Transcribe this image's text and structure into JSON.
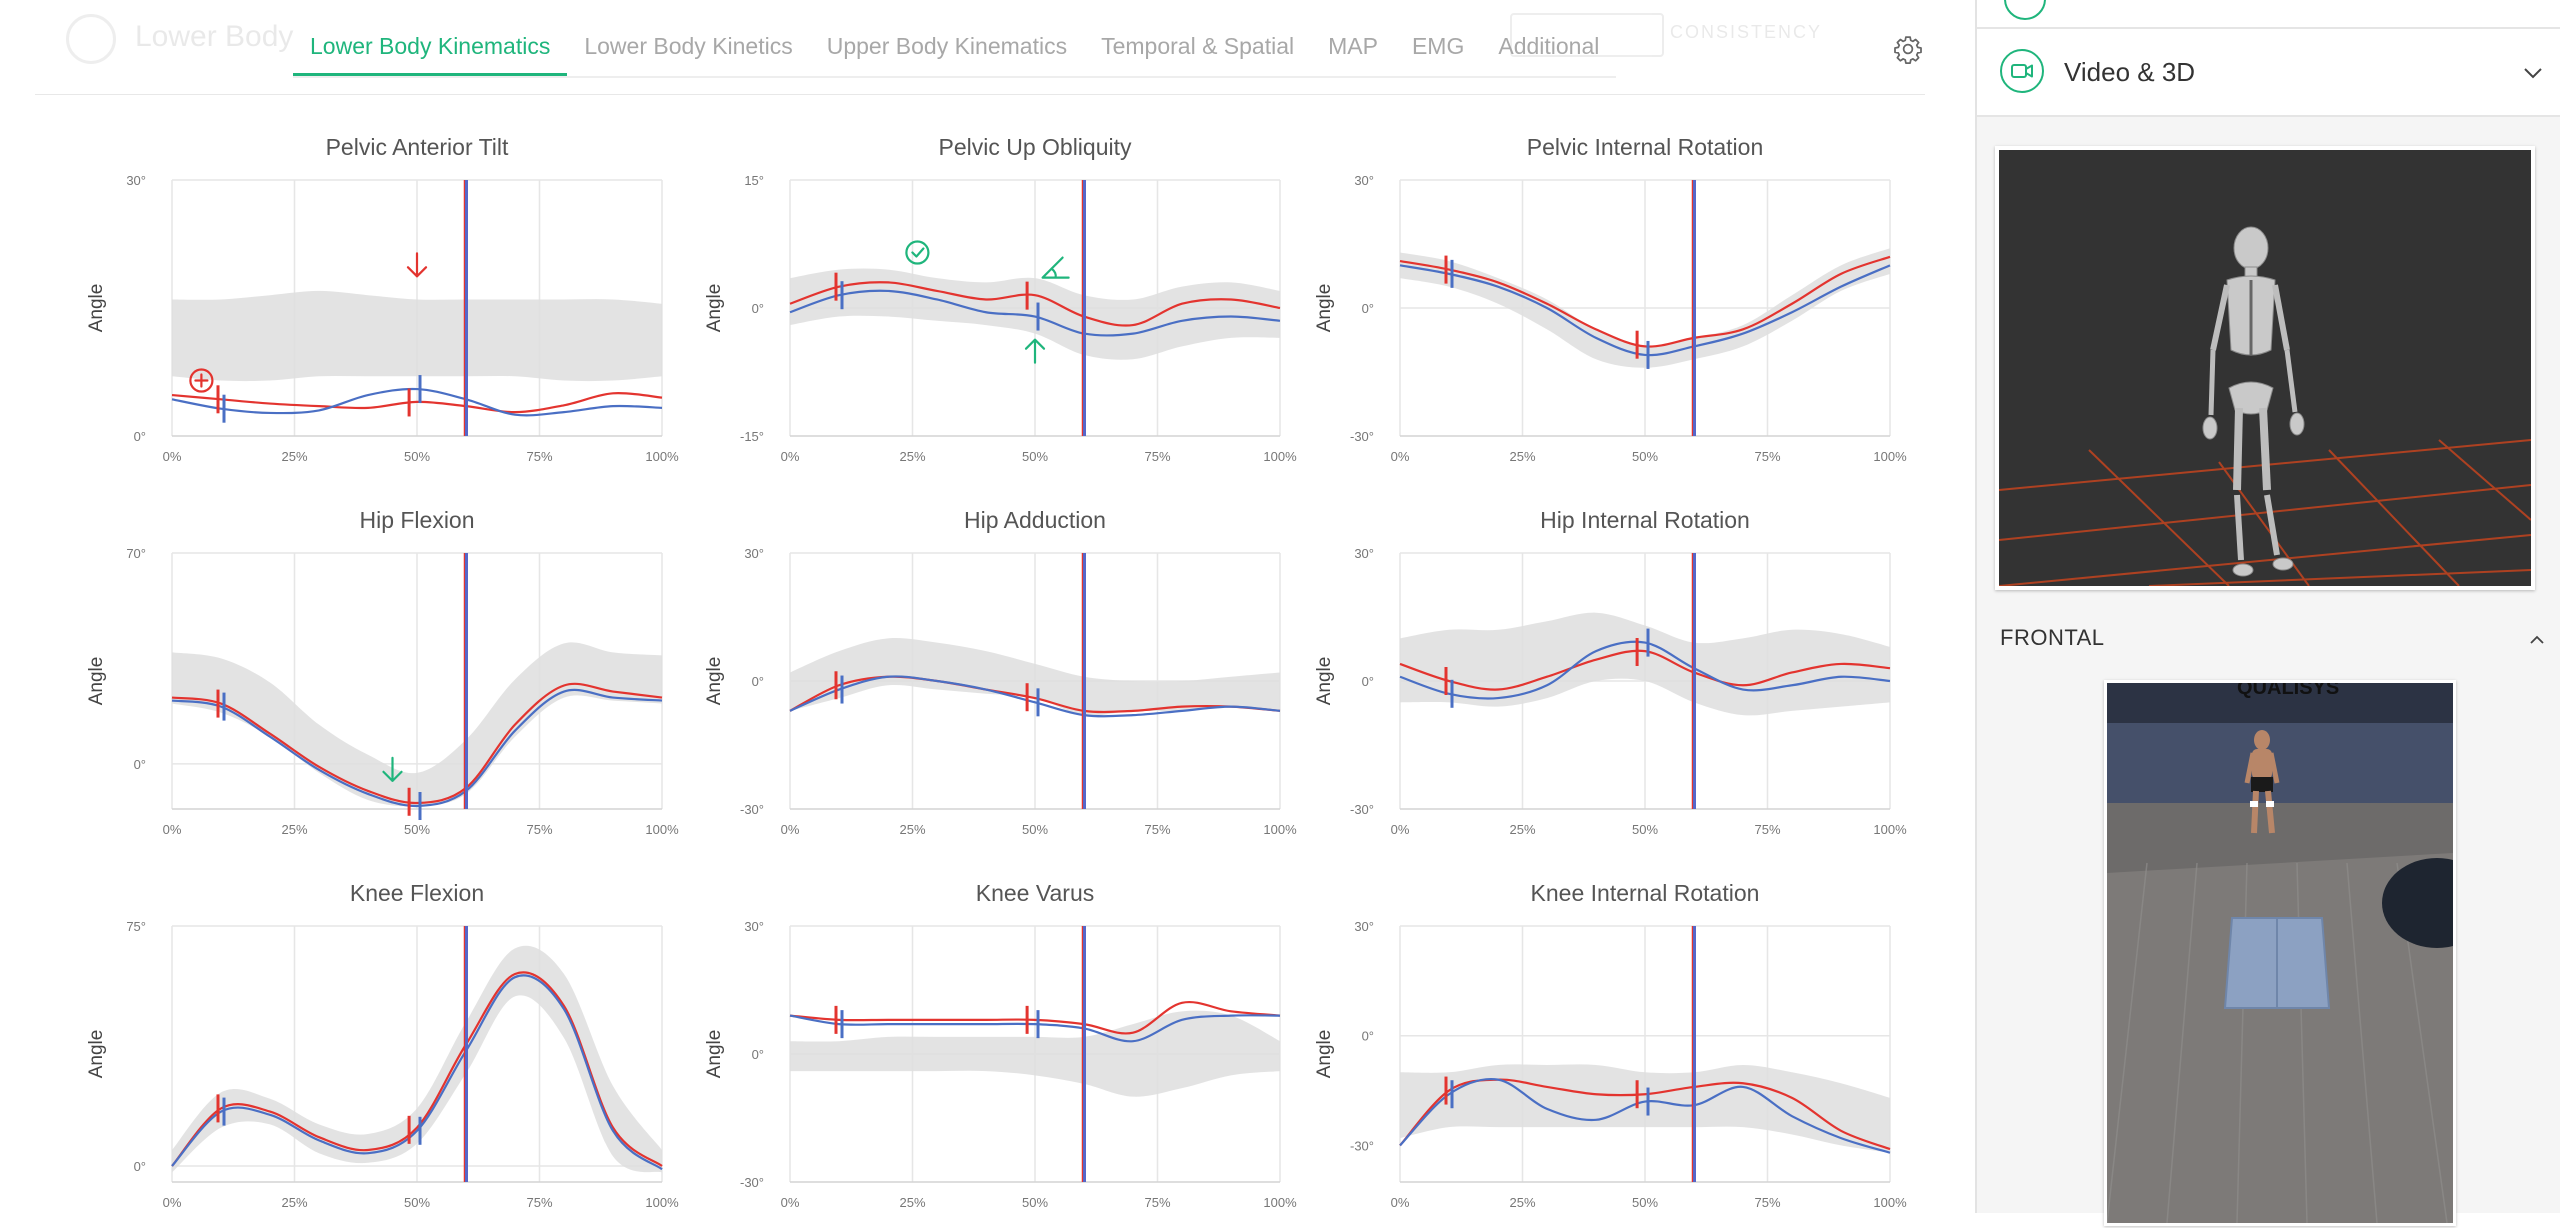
{
  "header": {
    "ghost_title": "Lower Body",
    "ghost_button": "CONSISTENCY",
    "tabs": [
      {
        "label": "Lower Body Kinematics",
        "active": true
      },
      {
        "label": "Lower Body Kinetics",
        "active": false
      },
      {
        "label": "Upper Body Kinematics",
        "active": false
      },
      {
        "label": "Temporal & Spatial",
        "active": false
      },
      {
        "label": "MAP",
        "active": false
      },
      {
        "label": "EMG",
        "active": false
      },
      {
        "label": "Additional",
        "active": false
      }
    ],
    "settings_icon": "gear-icon"
  },
  "sidebar": {
    "video_panel": {
      "title": "Video & 3D",
      "icon": "video-camera-icon",
      "chevron": "chevron-down-icon"
    },
    "frontal": {
      "label": "FRONTAL",
      "chevron": "chevron-up-icon",
      "watermark": "QUALISYS"
    }
  },
  "colors": {
    "accent": "#1fb57c",
    "left_side": "#e3342f",
    "right_side": "#4a6fc4",
    "normal_band": "#dedede",
    "event_marker": "#5567c9",
    "warning": "#e3342f",
    "ok": "#1fb57c"
  },
  "chart_data": [
    {
      "id": "pelvic-anterior-tilt",
      "type": "line",
      "title": "Pelvic Anterior Tilt",
      "ylabel": "Angle",
      "ylim": [
        0,
        30
      ],
      "ytick_labels": [
        "30°",
        "0°"
      ],
      "xtick_labels": [
        "0%",
        "25%",
        "50%",
        "75%",
        "100%"
      ],
      "x": [
        0,
        10,
        20,
        30,
        40,
        50,
        60,
        70,
        80,
        90,
        100
      ],
      "band_upper": [
        16,
        16,
        16.5,
        17,
        16.5,
        16,
        16,
        16,
        16,
        16,
        15.5
      ],
      "band_lower": [
        7,
        6.5,
        6.5,
        7,
        7,
        7,
        7,
        7,
        6.5,
        6.5,
        7
      ],
      "series": [
        {
          "side": "left",
          "values": [
            4.8,
            4.3,
            3.8,
            3.5,
            3.3,
            4.0,
            3.5,
            2.8,
            3.6,
            5.0,
            4.5
          ]
        },
        {
          "side": "right",
          "values": [
            4.3,
            3.2,
            2.7,
            3.0,
            4.8,
            5.5,
            4.3,
            2.5,
            2.8,
            3.5,
            3.3
          ]
        }
      ],
      "events": {
        "left": [
          10,
          49
        ],
        "right": [
          10,
          50
        ]
      },
      "event_line": 60,
      "annotations": [
        {
          "icon": "arrow-down-icon",
          "color": "warning",
          "x": 50,
          "y": 20
        },
        {
          "icon": "plus-circle-icon",
          "color": "warning",
          "x": 6,
          "y": 6.5
        }
      ]
    },
    {
      "id": "pelvic-up-obliquity",
      "type": "line",
      "title": "Pelvic Up Obliquity",
      "ylabel": "Angle",
      "ylim": [
        -15,
        15
      ],
      "ytick_labels": [
        "15°",
        "0°",
        "-15°"
      ],
      "xtick_labels": [
        "0%",
        "25%",
        "50%",
        "75%",
        "100%"
      ],
      "x": [
        0,
        10,
        20,
        30,
        40,
        50,
        60,
        70,
        80,
        90,
        100
      ],
      "band_upper": [
        3.5,
        4.5,
        4.5,
        3.5,
        3,
        3.5,
        1.5,
        1,
        2.5,
        3,
        2
      ],
      "band_lower": [
        -2,
        -1,
        -1,
        -1.5,
        -2,
        -3,
        -5.5,
        -6,
        -4.5,
        -3.5,
        -3.5
      ],
      "series": [
        {
          "side": "left",
          "values": [
            0.5,
            2.5,
            3.0,
            2.0,
            1.0,
            1.5,
            -1.0,
            -2.0,
            0.5,
            1.0,
            0.0
          ]
        },
        {
          "side": "right",
          "values": [
            -0.5,
            1.5,
            2.0,
            1.0,
            -0.5,
            -1.0,
            -3.0,
            -3.0,
            -1.5,
            -1.0,
            -1.5
          ]
        }
      ],
      "events": {
        "left": [
          10,
          49
        ],
        "right": [
          10,
          50
        ]
      },
      "event_line": 60,
      "annotations": [
        {
          "icon": "check-circle-icon",
          "color": "ok",
          "x": 26,
          "y": 6.5
        },
        {
          "icon": "angle-icon",
          "color": "ok",
          "x": 54,
          "y": 4.5
        },
        {
          "icon": "arrow-up-icon",
          "color": "ok",
          "x": 50,
          "y": -5
        }
      ]
    },
    {
      "id": "pelvic-internal-rotation",
      "type": "line",
      "title": "Pelvic Internal Rotation",
      "ylabel": "Angle",
      "ylim": [
        -30,
        30
      ],
      "ytick_labels": [
        "30°",
        "0°",
        "-30°"
      ],
      "xtick_labels": [
        "0%",
        "25%",
        "50%",
        "75%",
        "100%"
      ],
      "x": [
        0,
        10,
        20,
        30,
        40,
        50,
        60,
        70,
        80,
        90,
        100
      ],
      "band_upper": [
        13,
        11,
        7,
        2,
        -5,
        -9,
        -7,
        -4,
        3,
        10,
        14
      ],
      "band_lower": [
        7,
        5,
        1,
        -5,
        -12,
        -14,
        -12,
        -9,
        -3,
        4,
        8
      ],
      "series": [
        {
          "side": "left",
          "values": [
            11,
            9,
            6,
            1,
            -5,
            -9,
            -7,
            -5,
            1,
            8,
            12
          ]
        },
        {
          "side": "right",
          "values": [
            10,
            8,
            5,
            0,
            -7,
            -11,
            -9,
            -6,
            -1,
            5,
            10
          ]
        }
      ],
      "events": {
        "left": [
          10,
          49
        ],
        "right": [
          10,
          50
        ]
      },
      "event_line": 60,
      "annotations": []
    },
    {
      "id": "hip-flexion",
      "type": "line",
      "title": "Hip Flexion",
      "ylabel": "Angle",
      "ylim": [
        -15,
        70
      ],
      "ytick_labels": [
        "70°",
        "0°"
      ],
      "xtick_labels": [
        "0%",
        "25%",
        "50%",
        "75%",
        "100%"
      ],
      "x": [
        0,
        10,
        20,
        30,
        40,
        50,
        60,
        70,
        80,
        90,
        100
      ],
      "band_upper": [
        37,
        35,
        27,
        13,
        3,
        -3,
        8,
        28,
        40,
        37,
        36
      ],
      "band_lower": [
        20,
        17,
        9,
        -3,
        -12,
        -14,
        -10,
        9,
        22,
        21,
        20
      ],
      "series": [
        {
          "side": "left",
          "values": [
            22,
            20,
            10,
            -1,
            -9,
            -13,
            -8,
            13,
            26,
            24,
            22
          ]
        },
        {
          "side": "right",
          "values": [
            21,
            19,
            9,
            -2,
            -10,
            -14,
            -9,
            11,
            24,
            22,
            21
          ]
        }
      ],
      "events": {
        "left": [
          10,
          49
        ],
        "right": [
          10,
          50
        ]
      },
      "event_line": 60,
      "annotations": [
        {
          "icon": "arrow-down-icon",
          "color": "ok",
          "x": 45,
          "y": -2
        }
      ]
    },
    {
      "id": "hip-adduction",
      "type": "line",
      "title": "Hip Adduction",
      "ylabel": "Angle",
      "ylim": [
        -30,
        30
      ],
      "ytick_labels": [
        "30°",
        "0°",
        "-30°"
      ],
      "xtick_labels": [
        "0%",
        "25%",
        "50%",
        "75%",
        "100%"
      ],
      "x": [
        0,
        10,
        20,
        30,
        40,
        50,
        60,
        70,
        80,
        90,
        100
      ],
      "band_upper": [
        2,
        7,
        10,
        9,
        7,
        4,
        1,
        0,
        0,
        1,
        2
      ],
      "band_lower": [
        -7,
        -4,
        -1,
        -2,
        -3,
        -4,
        -8,
        -7,
        -7,
        -6,
        -7
      ],
      "series": [
        {
          "side": "left",
          "values": [
            -7,
            -1,
            1,
            0,
            -2,
            -4,
            -7,
            -7,
            -6,
            -6,
            -7
          ]
        },
        {
          "side": "right",
          "values": [
            -7,
            -2,
            1,
            0,
            -2,
            -5,
            -8,
            -8,
            -7,
            -6,
            -7
          ]
        }
      ],
      "events": {
        "left": [
          10,
          49
        ],
        "right": [
          10,
          50
        ]
      },
      "event_line": 60,
      "annotations": []
    },
    {
      "id": "hip-internal-rotation",
      "type": "line",
      "title": "Hip Internal Rotation",
      "ylabel": "Angle",
      "ylim": [
        -30,
        30
      ],
      "ytick_labels": [
        "30°",
        "0°",
        "-30°"
      ],
      "xtick_labels": [
        "0%",
        "25%",
        "50%",
        "75%",
        "100%"
      ],
      "x": [
        0,
        10,
        20,
        30,
        40,
        50,
        60,
        70,
        80,
        90,
        100
      ],
      "band_upper": [
        10,
        12,
        12,
        14,
        16,
        13,
        9,
        10,
        12,
        11,
        8
      ],
      "band_lower": [
        -5,
        -5,
        -6,
        -4,
        0,
        0,
        -5,
        -8,
        -7,
        -6,
        -5
      ],
      "series": [
        {
          "side": "left",
          "values": [
            4,
            0,
            -2,
            1,
            5,
            7,
            2,
            -1,
            2,
            4,
            3
          ]
        },
        {
          "side": "right",
          "values": [
            1,
            -3,
            -4,
            -1,
            7,
            9,
            3,
            -2,
            -1,
            1,
            0
          ]
        }
      ],
      "events": {
        "left": [
          10,
          49
        ],
        "right": [
          10,
          50
        ]
      },
      "event_line": 60,
      "annotations": []
    },
    {
      "id": "knee-flexion",
      "type": "line",
      "title": "Knee Flexion",
      "ylabel": "Angle",
      "ylim": [
        -5,
        75
      ],
      "ytick_labels": [
        "75°",
        "0°"
      ],
      "xtick_labels": [
        "0%",
        "25%",
        "50%",
        "75%",
        "100%"
      ],
      "x": [
        0,
        10,
        20,
        30,
        40,
        50,
        60,
        70,
        80,
        90,
        100
      ],
      "band_upper": [
        5,
        23,
        21,
        13,
        10,
        18,
        45,
        68,
        60,
        25,
        5
      ],
      "band_lower": [
        -2,
        12,
        13,
        4,
        1,
        7,
        29,
        53,
        40,
        3,
        -2
      ],
      "series": [
        {
          "side": "left",
          "values": [
            0,
            18,
            17,
            9,
            5,
            12,
            38,
            60,
            50,
            12,
            0
          ]
        },
        {
          "side": "right",
          "values": [
            0,
            17,
            16,
            8,
            4,
            11,
            36,
            59,
            49,
            11,
            -1
          ]
        }
      ],
      "events": {
        "left": [
          10,
          49
        ],
        "right": [
          10,
          50
        ]
      },
      "event_line": 60,
      "annotations": []
    },
    {
      "id": "knee-varus",
      "type": "line",
      "title": "Knee Varus",
      "ylabel": "Angle",
      "ylim": [
        -30,
        30
      ],
      "ytick_labels": [
        "30°",
        "0°",
        "-30°"
      ],
      "xtick_labels": [
        "0%",
        "25%",
        "50%",
        "75%",
        "100%"
      ],
      "x": [
        0,
        10,
        20,
        30,
        40,
        50,
        60,
        70,
        80,
        90,
        100
      ],
      "band_upper": [
        3,
        3,
        4,
        4,
        4,
        4,
        4,
        7,
        10,
        9,
        3
      ],
      "band_lower": [
        -4,
        -4,
        -4,
        -4,
        -4,
        -5,
        -7,
        -10,
        -8,
        -5,
        -4
      ],
      "series": [
        {
          "side": "left",
          "values": [
            9,
            8,
            8,
            8,
            8,
            8,
            7,
            5,
            12,
            10,
            9
          ]
        },
        {
          "side": "right",
          "values": [
            9,
            7,
            7,
            7,
            7,
            7,
            6,
            3,
            8,
            9,
            9
          ]
        }
      ],
      "events": {
        "left": [
          10,
          49
        ],
        "right": [
          10,
          50
        ]
      },
      "event_line": 60,
      "annotations": []
    },
    {
      "id": "knee-internal-rotation",
      "type": "line",
      "title": "Knee Internal Rotation",
      "ylabel": "Angle",
      "ylim": [
        -40,
        30
      ],
      "ytick_labels": [
        "30°",
        "0°",
        "-30°"
      ],
      "xtick_labels": [
        "0%",
        "25%",
        "50%",
        "75%",
        "100%"
      ],
      "x": [
        0,
        10,
        20,
        30,
        40,
        50,
        60,
        70,
        80,
        90,
        100
      ],
      "band_upper": [
        -10,
        -10,
        -8,
        -8,
        -8,
        -10,
        -10,
        -8,
        -10,
        -13,
        -17
      ],
      "band_lower": [
        -28,
        -25,
        -25,
        -25,
        -25,
        -25,
        -25,
        -25,
        -27,
        -30,
        -32
      ],
      "series": [
        {
          "side": "left",
          "values": [
            -30,
            -15,
            -12,
            -14,
            -16,
            -16,
            -14,
            -13,
            -17,
            -26,
            -31
          ]
        },
        {
          "side": "right",
          "values": [
            -30,
            -16,
            -12,
            -20,
            -23,
            -18,
            -19,
            -14,
            -22,
            -28,
            -32
          ]
        }
      ],
      "events": {
        "left": [
          10,
          49
        ],
        "right": [
          10,
          50
        ]
      },
      "event_line": 60,
      "annotations": []
    }
  ]
}
